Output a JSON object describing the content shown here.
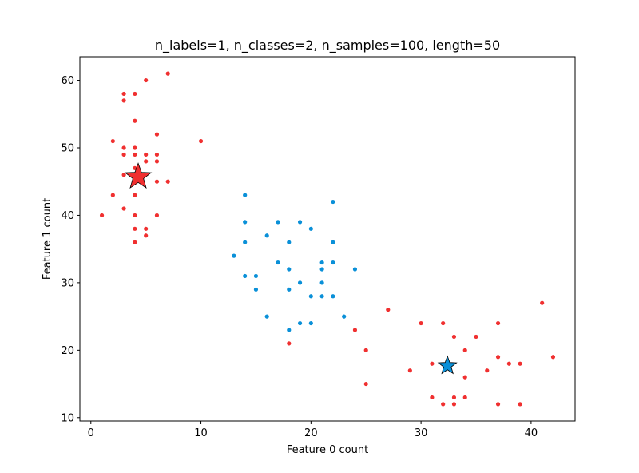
{
  "chart_data": {
    "type": "scatter",
    "title": "n_labels=1, n_classes=2, n_samples=100, length=50",
    "xlabel": "Feature 0 count",
    "ylabel": "Feature 1 count",
    "xlim": [
      -1,
      44
    ],
    "ylim": [
      9.5,
      63.5
    ],
    "xticks": [
      "0",
      "10",
      "20",
      "30",
      "40"
    ],
    "yticks": [
      "10",
      "20",
      "30",
      "40",
      "50",
      "60"
    ],
    "grid": false,
    "colors": {
      "red": "#f03030",
      "blue": "#0a90d8",
      "edge": "#000000"
    },
    "series": [
      {
        "color": "red",
        "points": [
          [
            1,
            40
          ],
          [
            2,
            51
          ],
          [
            2,
            43
          ],
          [
            3,
            58
          ],
          [
            3,
            57
          ],
          [
            3,
            50
          ],
          [
            3,
            49
          ],
          [
            3,
            46
          ],
          [
            3,
            41
          ],
          [
            4,
            58
          ],
          [
            4,
            54
          ],
          [
            4,
            50
          ],
          [
            4,
            49
          ],
          [
            4,
            47
          ],
          [
            4,
            45
          ],
          [
            4,
            43
          ],
          [
            4,
            40
          ],
          [
            4,
            38
          ],
          [
            4,
            36
          ],
          [
            5,
            60
          ],
          [
            5,
            49
          ],
          [
            5,
            48
          ],
          [
            5,
            38
          ],
          [
            5,
            37
          ],
          [
            6,
            52
          ],
          [
            6,
            49
          ],
          [
            6,
            48
          ],
          [
            6,
            45
          ],
          [
            6,
            40
          ],
          [
            7,
            61
          ],
          [
            7,
            45
          ],
          [
            10,
            51
          ],
          [
            18,
            21
          ],
          [
            24,
            23
          ],
          [
            25,
            20
          ],
          [
            25,
            15
          ],
          [
            27,
            26
          ],
          [
            29,
            17
          ],
          [
            30,
            24
          ],
          [
            31,
            18
          ],
          [
            31,
            13
          ],
          [
            32,
            24
          ],
          [
            32,
            12
          ],
          [
            33,
            22
          ],
          [
            33,
            13
          ],
          [
            33,
            12
          ],
          [
            34,
            20
          ],
          [
            34,
            16
          ],
          [
            34,
            13
          ],
          [
            35,
            22
          ],
          [
            36,
            17
          ],
          [
            37,
            24
          ],
          [
            37,
            19
          ],
          [
            37,
            12
          ],
          [
            38,
            18
          ],
          [
            39,
            18
          ],
          [
            39,
            12
          ],
          [
            41,
            27
          ],
          [
            42,
            19
          ]
        ]
      },
      {
        "color": "blue",
        "points": [
          [
            13,
            34
          ],
          [
            14,
            43
          ],
          [
            14,
            39
          ],
          [
            14,
            36
          ],
          [
            14,
            31
          ],
          [
            15,
            31
          ],
          [
            15,
            29
          ],
          [
            16,
            37
          ],
          [
            16,
            25
          ],
          [
            17,
            39
          ],
          [
            17,
            33
          ],
          [
            18,
            36
          ],
          [
            18,
            32
          ],
          [
            18,
            29
          ],
          [
            18,
            23
          ],
          [
            19,
            39
          ],
          [
            19,
            30
          ],
          [
            19,
            24
          ],
          [
            20,
            38
          ],
          [
            20,
            28
          ],
          [
            20,
            24
          ],
          [
            21,
            33
          ],
          [
            21,
            32
          ],
          [
            21,
            30
          ],
          [
            21,
            28
          ],
          [
            22,
            42
          ],
          [
            22,
            36
          ],
          [
            22,
            33
          ],
          [
            22,
            28
          ],
          [
            23,
            25
          ],
          [
            24,
            32
          ]
        ]
      }
    ],
    "centroids": [
      {
        "color": "red",
        "x": 4.3,
        "y": 45.7
      },
      {
        "color": "blue",
        "x": 32.4,
        "y": 17.7
      }
    ]
  }
}
